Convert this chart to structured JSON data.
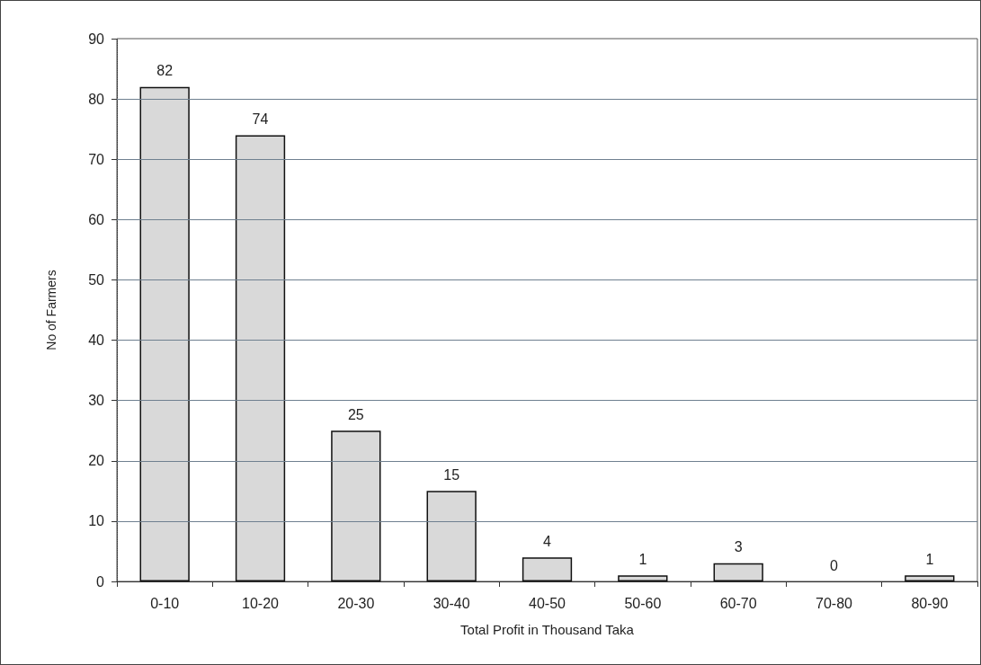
{
  "chart_data": {
    "type": "bar",
    "xlabel": "Total Profit in Thousand Taka",
    "ylabel": "No of Farmers",
    "categories": [
      "0-10",
      "10-20",
      "20-30",
      "30-40",
      "40-50",
      "50-60",
      "60-70",
      "70-80",
      "80-90"
    ],
    "values": [
      82,
      74,
      25,
      15,
      4,
      1,
      3,
      0,
      1
    ],
    "color": "#d9d9d9",
    "ylim": [
      0,
      90
    ],
    "yticks": [
      0,
      10,
      20,
      30,
      40,
      50,
      60,
      70,
      80,
      90
    ],
    "grid": "y",
    "data_labels": true
  }
}
